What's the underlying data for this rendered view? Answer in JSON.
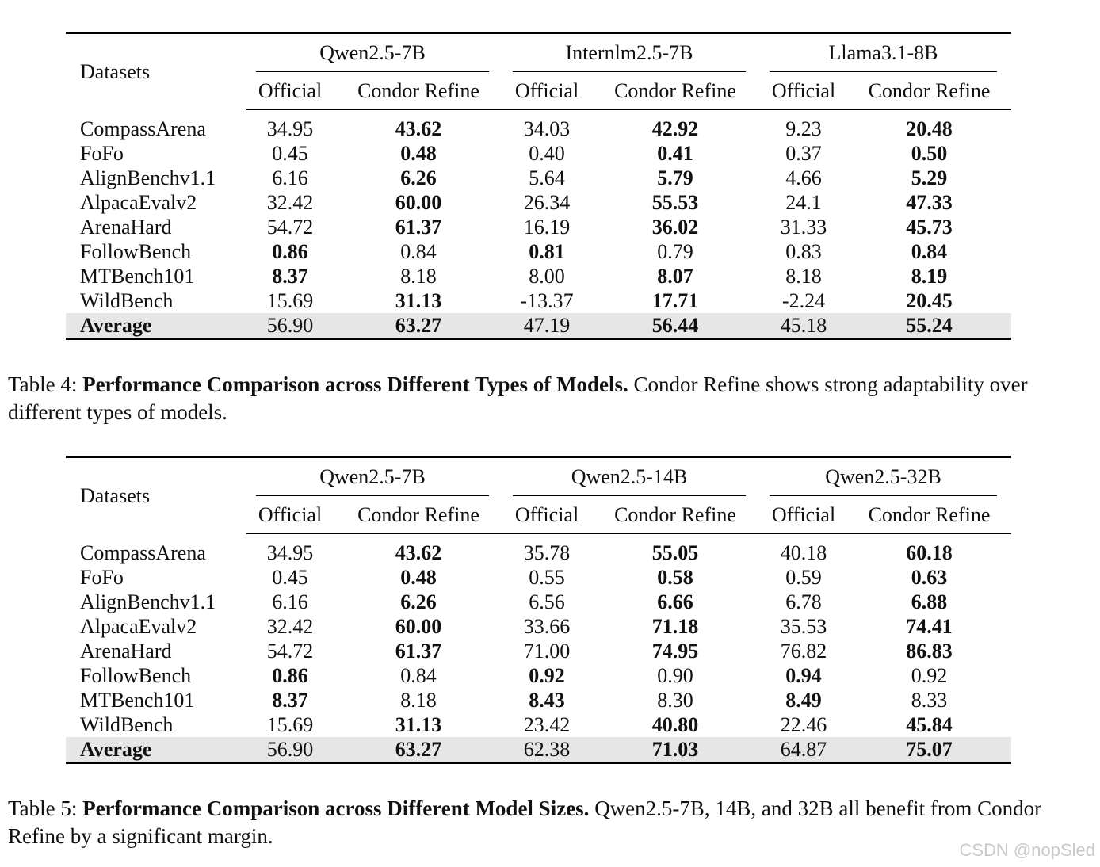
{
  "table4": {
    "header": "Datasets",
    "models": [
      "Qwen2.5-7B",
      "Internlm2.5-7B",
      "Llama3.1-8B"
    ],
    "subheaders": [
      "Official",
      "Condor Refine"
    ],
    "rows": [
      {
        "dataset": "CompassArena",
        "values": [
          "34.95",
          "43.62",
          "34.03",
          "42.92",
          "9.23",
          "20.48"
        ],
        "bold": [
          1,
          3,
          5
        ]
      },
      {
        "dataset": "FoFo",
        "values": [
          "0.45",
          "0.48",
          "0.40",
          "0.41",
          "0.37",
          "0.50"
        ],
        "bold": [
          1,
          3,
          5
        ]
      },
      {
        "dataset": "AlignBenchv1.1",
        "values": [
          "6.16",
          "6.26",
          "5.64",
          "5.79",
          "4.66",
          "5.29"
        ],
        "bold": [
          1,
          3,
          5
        ]
      },
      {
        "dataset": "AlpacaEvalv2",
        "values": [
          "32.42",
          "60.00",
          "26.34",
          "55.53",
          "24.1",
          "47.33"
        ],
        "bold": [
          1,
          3,
          5
        ]
      },
      {
        "dataset": "ArenaHard",
        "values": [
          "54.72",
          "61.37",
          "16.19",
          "36.02",
          "31.33",
          "45.73"
        ],
        "bold": [
          1,
          3,
          5
        ]
      },
      {
        "dataset": "FollowBench",
        "values": [
          "0.86",
          "0.84",
          "0.81",
          "0.79",
          "0.83",
          "0.84"
        ],
        "bold": [
          0,
          2,
          5
        ]
      },
      {
        "dataset": "MTBench101",
        "values": [
          "8.37",
          "8.18",
          "8.00",
          "8.07",
          "8.18",
          "8.19"
        ],
        "bold": [
          0,
          3,
          5
        ]
      },
      {
        "dataset": "WildBench",
        "values": [
          "15.69",
          "31.13",
          "-13.37",
          "17.71",
          "-2.24",
          "20.45"
        ],
        "bold": [
          1,
          3,
          5
        ]
      }
    ],
    "average": {
      "dataset": "Average",
      "values": [
        "56.90",
        "63.27",
        "47.19",
        "56.44",
        "45.18",
        "55.24"
      ],
      "bold": [
        1,
        3,
        5
      ]
    }
  },
  "caption4": {
    "label": "Table 4: ",
    "title": "Performance Comparison across Different Types of Models.",
    "text": " Condor Refine shows strong adaptability over different types of models."
  },
  "table5": {
    "header": "Datasets",
    "models": [
      "Qwen2.5-7B",
      "Qwen2.5-14B",
      "Qwen2.5-32B"
    ],
    "subheaders": [
      "Official",
      "Condor Refine"
    ],
    "rows": [
      {
        "dataset": "CompassArena",
        "values": [
          "34.95",
          "43.62",
          "35.78",
          "55.05",
          "40.18",
          "60.18"
        ],
        "bold": [
          1,
          3,
          5
        ]
      },
      {
        "dataset": "FoFo",
        "values": [
          "0.45",
          "0.48",
          "0.55",
          "0.58",
          "0.59",
          "0.63"
        ],
        "bold": [
          1,
          3,
          5
        ]
      },
      {
        "dataset": "AlignBenchv1.1",
        "values": [
          "6.16",
          "6.26",
          "6.56",
          "6.66",
          "6.78",
          "6.88"
        ],
        "bold": [
          1,
          3,
          5
        ]
      },
      {
        "dataset": "AlpacaEvalv2",
        "values": [
          "32.42",
          "60.00",
          "33.66",
          "71.18",
          "35.53",
          "74.41"
        ],
        "bold": [
          1,
          3,
          5
        ]
      },
      {
        "dataset": "ArenaHard",
        "values": [
          "54.72",
          "61.37",
          "71.00",
          "74.95",
          "76.82",
          "86.83"
        ],
        "bold": [
          1,
          3,
          5
        ]
      },
      {
        "dataset": "FollowBench",
        "values": [
          "0.86",
          "0.84",
          "0.92",
          "0.90",
          "0.94",
          "0.92"
        ],
        "bold": [
          0,
          2,
          4
        ]
      },
      {
        "dataset": "MTBench101",
        "values": [
          "8.37",
          "8.18",
          "8.43",
          "8.30",
          "8.49",
          "8.33"
        ],
        "bold": [
          0,
          2,
          4
        ]
      },
      {
        "dataset": "WildBench",
        "values": [
          "15.69",
          "31.13",
          "23.42",
          "40.80",
          "22.46",
          "45.84"
        ],
        "bold": [
          1,
          3,
          5
        ]
      }
    ],
    "average": {
      "dataset": "Average",
      "values": [
        "56.90",
        "63.27",
        "62.38",
        "71.03",
        "64.87",
        "75.07"
      ],
      "bold": [
        1,
        3,
        5
      ]
    }
  },
  "caption5": {
    "label": "Table 5: ",
    "title": "Performance Comparison across Different Model Sizes.",
    "text": " Qwen2.5-7B, 14B, and 32B all benefit from Condor Refine by a significant margin."
  },
  "watermark": "CSDN @nopSled"
}
